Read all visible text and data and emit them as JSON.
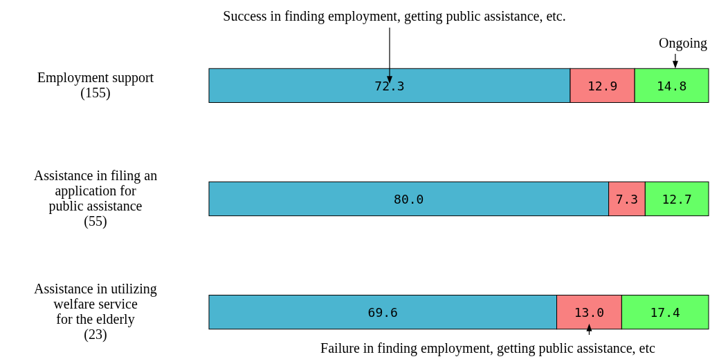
{
  "chart_data": {
    "type": "bar",
    "orientation": "horizontal",
    "stacked": true,
    "tick_labels": "y",
    "legend": false,
    "xlim": [
      0,
      100
    ],
    "categories": [
      "Employment support\n(155)",
      "Assistance in filing an\napplication for\npublic assistance\n(55)",
      "Assistance in utilizing\nwelfare service\nfor the elderly\n(23)"
    ],
    "series": [
      {
        "name": "Success in finding employment, getting public assistance, etc.",
        "color": "#4bb5d0",
        "values": [
          72.3,
          80.0,
          69.6
        ],
        "value_labels": [
          "72.3",
          "80.0",
          "69.6"
        ]
      },
      {
        "name": "Failure in finding employment, getting public assistance, etc",
        "color": "#f98080",
        "values": [
          12.9,
          7.3,
          13.0
        ],
        "value_labels": [
          "12.9",
          "7.3",
          "13.0"
        ]
      },
      {
        "name": "Ongoing",
        "color": "#66ff66",
        "values": [
          14.8,
          12.7,
          17.4
        ],
        "value_labels": [
          "14.8",
          "12.7",
          "17.4"
        ]
      }
    ]
  }
}
